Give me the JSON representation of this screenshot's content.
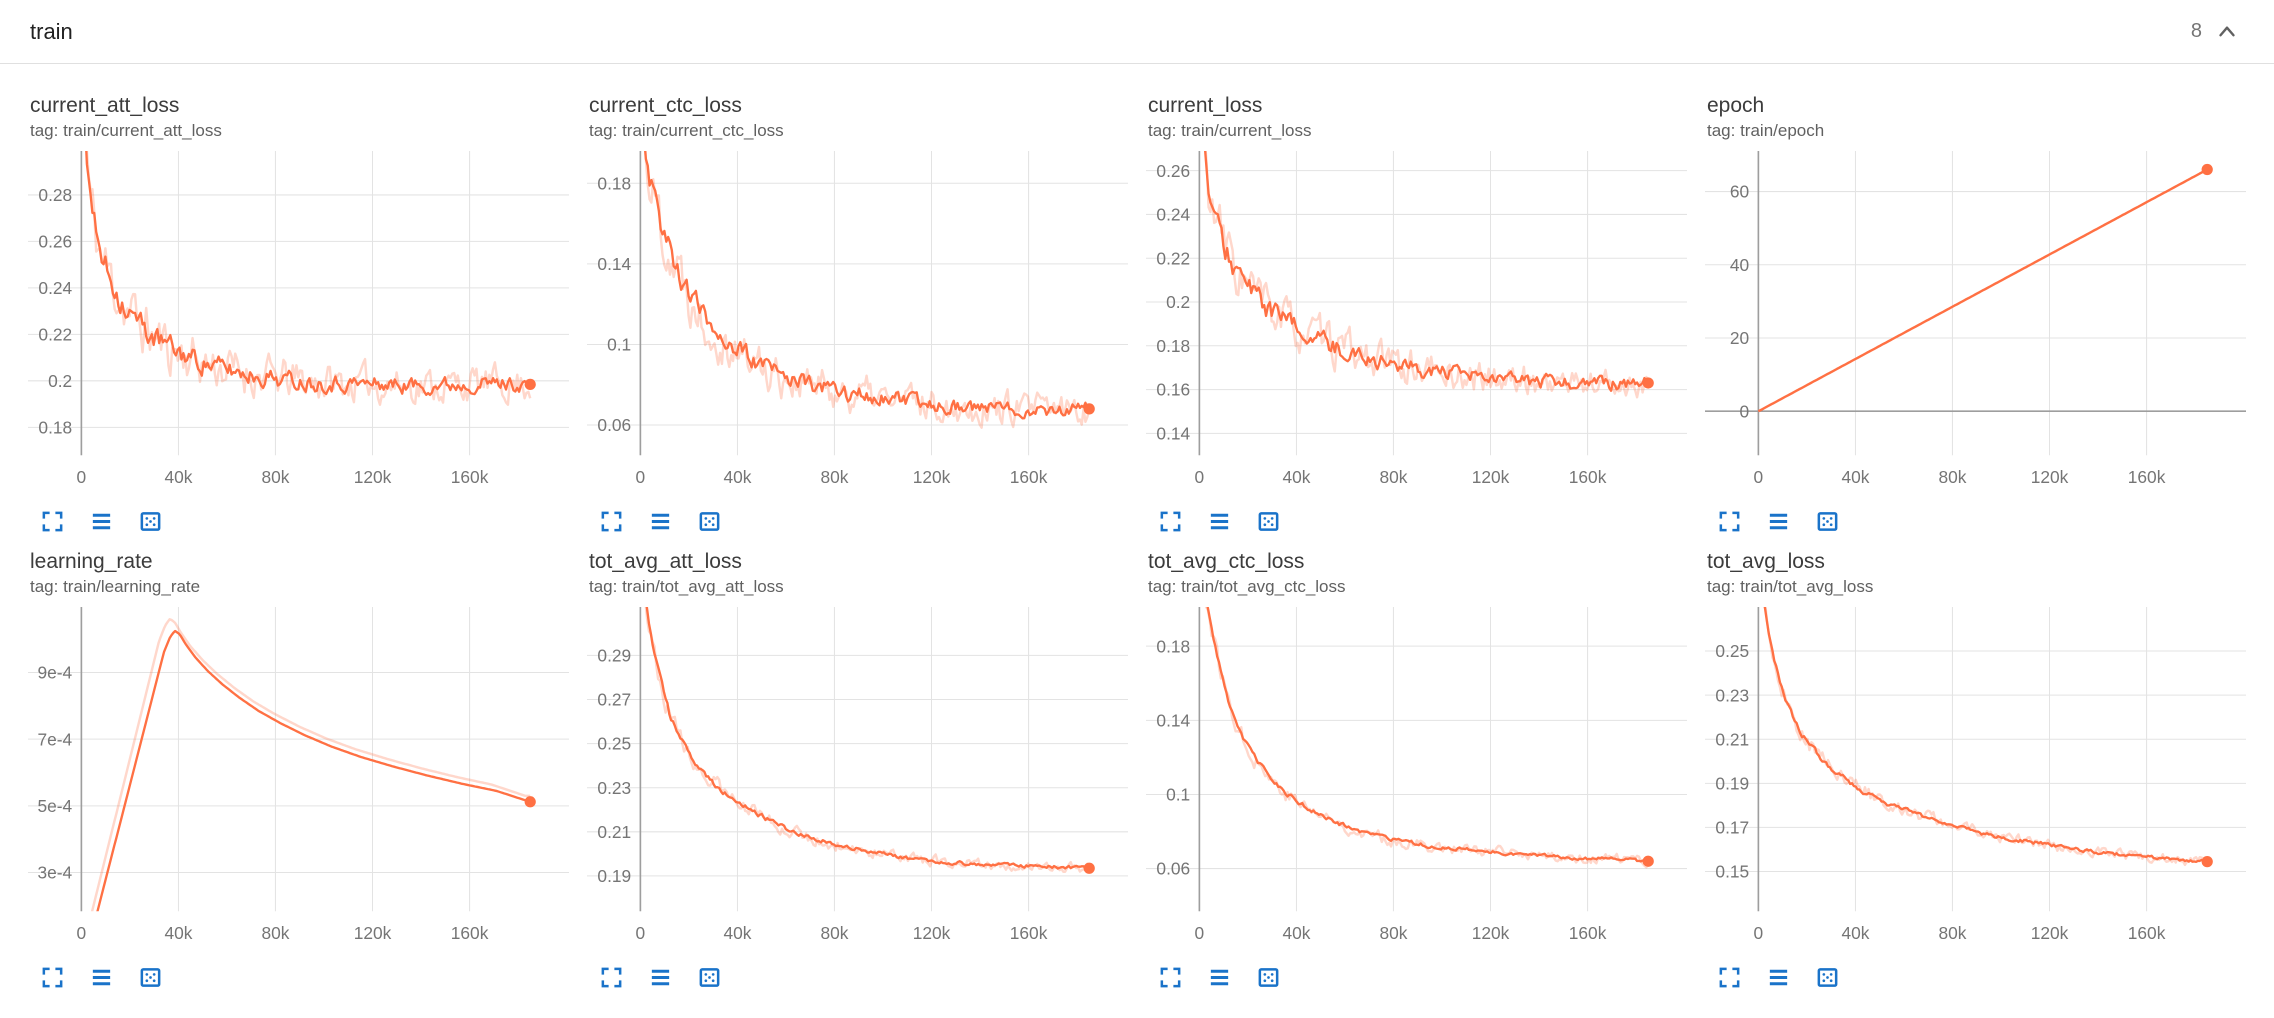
{
  "header": {
    "title": "train",
    "count": "8"
  },
  "icons": {
    "collapse": "chevron-up-icon",
    "expand": "fullscreen-icon",
    "data": "data-table-icon",
    "fit": "fit-domain-icon"
  },
  "theme": {
    "accent": "#ff7043",
    "accent_light_opacity": 0.28,
    "icon_blue": "#1a73c9",
    "grid": "#e3e3e3",
    "axis": "#9e9e9e",
    "tick_text": "#757575",
    "title_text": "#3c3c3c",
    "tag_text": "#616161"
  },
  "chart_data": [
    {
      "type": "line",
      "title": "current_att_loss",
      "tag": "tag: train/current_att_loss",
      "legend_position": "none",
      "grid": true,
      "xlim": [
        -22000,
        201000
      ],
      "xticks": [
        {
          "v": 0,
          "label": "0"
        },
        {
          "v": 40000,
          "label": "40k"
        },
        {
          "v": 80000,
          "label": "80k"
        },
        {
          "v": 120000,
          "label": "120k"
        },
        {
          "v": 160000,
          "label": "160k"
        }
      ],
      "ylim": [
        0.168,
        0.298
      ],
      "yticks": [
        {
          "v": 0.18,
          "label": "0.18"
        },
        {
          "v": 0.2,
          "label": "0.2"
        },
        {
          "v": 0.22,
          "label": "0.22"
        },
        {
          "v": 0.24,
          "label": "0.24"
        },
        {
          "v": 0.26,
          "label": "0.26"
        },
        {
          "v": 0.28,
          "label": "0.28"
        }
      ],
      "trend": [
        [
          1500,
          0.312
        ],
        [
          3000,
          0.285
        ],
        [
          5000,
          0.268
        ],
        [
          8000,
          0.254
        ],
        [
          12000,
          0.244
        ],
        [
          16000,
          0.236
        ],
        [
          20000,
          0.229
        ],
        [
          25000,
          0.2235
        ],
        [
          30000,
          0.2185
        ],
        [
          36000,
          0.2145
        ],
        [
          42000,
          0.2115
        ],
        [
          50000,
          0.208
        ],
        [
          58000,
          0.2055
        ],
        [
          66000,
          0.2035
        ],
        [
          75000,
          0.202
        ],
        [
          85000,
          0.2005
        ],
        [
          95000,
          0.1995
        ],
        [
          110000,
          0.199
        ],
        [
          125000,
          0.1985
        ],
        [
          140000,
          0.198
        ],
        [
          155000,
          0.1985
        ],
        [
          170000,
          0.199
        ],
        [
          185000,
          0.1985
        ]
      ],
      "noise_main": 0.0058,
      "noise_raw": 0.013,
      "raw_dx": 0,
      "raw_gain": 1,
      "seed": 11,
      "end_dot": true,
      "zero_y_line": false
    },
    {
      "type": "line",
      "title": "current_ctc_loss",
      "tag": "tag: train/current_ctc_loss",
      "legend_position": "none",
      "grid": true,
      "xlim": [
        -22000,
        201000
      ],
      "xticks": [
        {
          "v": 0,
          "label": "0"
        },
        {
          "v": 40000,
          "label": "40k"
        },
        {
          "v": 80000,
          "label": "80k"
        },
        {
          "v": 120000,
          "label": "120k"
        },
        {
          "v": 160000,
          "label": "160k"
        }
      ],
      "ylim": [
        0.045,
        0.195
      ],
      "yticks": [
        {
          "v": 0.06,
          "label": "0.06"
        },
        {
          "v": 0.1,
          "label": "0.1"
        },
        {
          "v": 0.14,
          "label": "0.14"
        },
        {
          "v": 0.18,
          "label": "0.18"
        }
      ],
      "trend": [
        [
          1500,
          0.205
        ],
        [
          3000,
          0.19
        ],
        [
          5000,
          0.178
        ],
        [
          8000,
          0.163
        ],
        [
          12000,
          0.148
        ],
        [
          16000,
          0.136
        ],
        [
          20000,
          0.126
        ],
        [
          25000,
          0.1165
        ],
        [
          30000,
          0.109
        ],
        [
          36000,
          0.1015
        ],
        [
          42000,
          0.0955
        ],
        [
          50000,
          0.0895
        ],
        [
          58000,
          0.085
        ],
        [
          66000,
          0.0815
        ],
        [
          75000,
          0.0785
        ],
        [
          85000,
          0.076
        ],
        [
          95000,
          0.074
        ],
        [
          110000,
          0.0715
        ],
        [
          125000,
          0.07
        ],
        [
          140000,
          0.0685
        ],
        [
          155000,
          0.068
        ],
        [
          170000,
          0.0675
        ],
        [
          185000,
          0.068
        ]
      ],
      "noise_main": 0.0062,
      "noise_raw": 0.014,
      "raw_dx": 0,
      "raw_gain": 1,
      "seed": 22,
      "end_dot": true,
      "zero_y_line": false
    },
    {
      "type": "line",
      "title": "current_loss",
      "tag": "tag: train/current_loss",
      "legend_position": "none",
      "grid": true,
      "xlim": [
        -22000,
        201000
      ],
      "xticks": [
        {
          "v": 0,
          "label": "0"
        },
        {
          "v": 40000,
          "label": "40k"
        },
        {
          "v": 80000,
          "label": "80k"
        },
        {
          "v": 120000,
          "label": "120k"
        },
        {
          "v": 160000,
          "label": "160k"
        }
      ],
      "ylim": [
        0.13,
        0.268
      ],
      "yticks": [
        {
          "v": 0.14,
          "label": "0.14"
        },
        {
          "v": 0.16,
          "label": "0.16"
        },
        {
          "v": 0.18,
          "label": "0.18"
        },
        {
          "v": 0.2,
          "label": "0.2"
        },
        {
          "v": 0.22,
          "label": "0.22"
        },
        {
          "v": 0.24,
          "label": "0.24"
        },
        {
          "v": 0.26,
          "label": "0.26"
        }
      ],
      "trend": [
        [
          1500,
          0.278
        ],
        [
          3000,
          0.257
        ],
        [
          5000,
          0.2435
        ],
        [
          8000,
          0.2315
        ],
        [
          12000,
          0.2215
        ],
        [
          16000,
          0.2135
        ],
        [
          20000,
          0.207
        ],
        [
          25000,
          0.2005
        ],
        [
          30000,
          0.1955
        ],
        [
          36000,
          0.1905
        ],
        [
          42000,
          0.1865
        ],
        [
          50000,
          0.182
        ],
        [
          58000,
          0.1785
        ],
        [
          66000,
          0.1755
        ],
        [
          75000,
          0.173
        ],
        [
          85000,
          0.1705
        ],
        [
          95000,
          0.1685
        ],
        [
          110000,
          0.166
        ],
        [
          125000,
          0.1645
        ],
        [
          140000,
          0.1635
        ],
        [
          155000,
          0.163
        ],
        [
          170000,
          0.1625
        ],
        [
          185000,
          0.163
        ]
      ],
      "noise_main": 0.0055,
      "noise_raw": 0.012,
      "raw_dx": 0,
      "raw_gain": 1,
      "seed": 33,
      "end_dot": true,
      "zero_y_line": false
    },
    {
      "type": "line",
      "title": "epoch",
      "tag": "tag: train/epoch",
      "legend_position": "none",
      "grid": true,
      "xlim": [
        -22000,
        201000
      ],
      "xticks": [
        {
          "v": 0,
          "label": "0"
        },
        {
          "v": 40000,
          "label": "40k"
        },
        {
          "v": 80000,
          "label": "80k"
        },
        {
          "v": 120000,
          "label": "120k"
        },
        {
          "v": 160000,
          "label": "160k"
        }
      ],
      "ylim": [
        -12,
        70.5
      ],
      "yticks": [
        {
          "v": 0,
          "label": "0"
        },
        {
          "v": 20,
          "label": "20"
        },
        {
          "v": 40,
          "label": "40"
        },
        {
          "v": 60,
          "label": "60"
        }
      ],
      "trend": [
        [
          0,
          0
        ],
        [
          185000,
          66
        ]
      ],
      "noise_main": 0,
      "noise_raw": 0,
      "raw_dx": 0,
      "raw_gain": 1,
      "seed": 4,
      "end_dot": true,
      "zero_y_line": true
    },
    {
      "type": "line",
      "title": "learning_rate",
      "tag": "tag: train/learning_rate",
      "legend_position": "none",
      "grid": true,
      "xlim": [
        -22000,
        201000
      ],
      "xticks": [
        {
          "v": 0,
          "label": "0"
        },
        {
          "v": 40000,
          "label": "40k"
        },
        {
          "v": 80000,
          "label": "80k"
        },
        {
          "v": 120000,
          "label": "120k"
        },
        {
          "v": 160000,
          "label": "160k"
        }
      ],
      "ylim": [
        0.000184,
        0.00109
      ],
      "yticks": [
        {
          "v": 0.0003,
          "label": "3e-4"
        },
        {
          "v": 0.0005,
          "label": "5e-4"
        },
        {
          "v": 0.0007,
          "label": "7e-4"
        },
        {
          "v": 0.0009,
          "label": "9e-4"
        }
      ],
      "trend": [
        [
          3000,
          8e-05
        ],
        [
          34000,
          0.00096
        ],
        [
          36500,
          0.001005
        ],
        [
          38500,
          0.001025
        ],
        [
          40500,
          0.001015
        ],
        [
          43000,
          0.000985
        ],
        [
          47000,
          0.000945
        ],
        [
          52000,
          0.000905
        ],
        [
          58000,
          0.000865
        ],
        [
          65000,
          0.000825
        ],
        [
          73000,
          0.000785
        ],
        [
          82000,
          0.000748
        ],
        [
          92000,
          0.000712
        ],
        [
          103000,
          0.000678
        ],
        [
          115000,
          0.000647
        ],
        [
          128000,
          0.000619
        ],
        [
          142000,
          0.000592
        ],
        [
          157000,
          0.000566
        ],
        [
          171000,
          0.000545
        ],
        [
          185000,
          0.000512
        ]
      ],
      "noise_main": 0,
      "noise_raw": 0,
      "raw_dx": 2000,
      "raw_gain": 1.035,
      "seed": 5,
      "end_dot": true,
      "zero_y_line": false
    },
    {
      "type": "line",
      "title": "tot_avg_att_loss",
      "tag": "tag: train/tot_avg_att_loss",
      "legend_position": "none",
      "grid": true,
      "xlim": [
        -22000,
        201000
      ],
      "xticks": [
        {
          "v": 0,
          "label": "0"
        },
        {
          "v": 40000,
          "label": "40k"
        },
        {
          "v": 80000,
          "label": "80k"
        },
        {
          "v": 120000,
          "label": "120k"
        },
        {
          "v": 160000,
          "label": "160k"
        }
      ],
      "ylim": [
        0.174,
        0.311
      ],
      "yticks": [
        {
          "v": 0.19,
          "label": "0.19"
        },
        {
          "v": 0.21,
          "label": "0.21"
        },
        {
          "v": 0.23,
          "label": "0.23"
        },
        {
          "v": 0.25,
          "label": "0.25"
        },
        {
          "v": 0.27,
          "label": "0.27"
        },
        {
          "v": 0.29,
          "label": "0.29"
        }
      ],
      "trend": [
        [
          2000,
          0.318
        ],
        [
          4000,
          0.302
        ],
        [
          6000,
          0.29
        ],
        [
          8000,
          0.281
        ],
        [
          10000,
          0.2715
        ],
        [
          12000,
          0.2635
        ],
        [
          15000,
          0.2555
        ],
        [
          18000,
          0.249
        ],
        [
          22000,
          0.2425
        ],
        [
          26000,
          0.2375
        ],
        [
          30000,
          0.2325
        ],
        [
          35000,
          0.2275
        ],
        [
          40000,
          0.2235
        ],
        [
          46000,
          0.2195
        ],
        [
          52000,
          0.216
        ],
        [
          60000,
          0.2115
        ],
        [
          70000,
          0.2075
        ],
        [
          80000,
          0.2045
        ],
        [
          90000,
          0.202
        ],
        [
          100000,
          0.2
        ],
        [
          115000,
          0.1975
        ],
        [
          130000,
          0.196
        ],
        [
          145000,
          0.195
        ],
        [
          160000,
          0.1945
        ],
        [
          172000,
          0.194
        ],
        [
          185000,
          0.1935
        ]
      ],
      "noise_main": 0.0014,
      "noise_raw": 0.004,
      "raw_dx": 0,
      "raw_gain": 1,
      "seed": 66,
      "end_dot": true,
      "zero_y_line": false
    },
    {
      "type": "line",
      "title": "tot_avg_ctc_loss",
      "tag": "tag: train/tot_avg_ctc_loss",
      "legend_position": "none",
      "grid": true,
      "xlim": [
        -22000,
        201000
      ],
      "xticks": [
        {
          "v": 0,
          "label": "0"
        },
        {
          "v": 40000,
          "label": "40k"
        },
        {
          "v": 80000,
          "label": "80k"
        },
        {
          "v": 120000,
          "label": "120k"
        },
        {
          "v": 160000,
          "label": "160k"
        }
      ],
      "ylim": [
        0.037,
        0.2
      ],
      "yticks": [
        {
          "v": 0.06,
          "label": "0.06"
        },
        {
          "v": 0.1,
          "label": "0.1"
        },
        {
          "v": 0.14,
          "label": "0.14"
        },
        {
          "v": 0.18,
          "label": "0.18"
        }
      ],
      "trend": [
        [
          2000,
          0.212
        ],
        [
          4000,
          0.196
        ],
        [
          6000,
          0.183
        ],
        [
          8000,
          0.171
        ],
        [
          10000,
          0.16
        ],
        [
          12000,
          0.151
        ],
        [
          15000,
          0.14
        ],
        [
          18000,
          0.131
        ],
        [
          22000,
          0.1215
        ],
        [
          26000,
          0.114
        ],
        [
          30000,
          0.108
        ],
        [
          35000,
          0.1015
        ],
        [
          40000,
          0.0965
        ],
        [
          46000,
          0.0915
        ],
        [
          52000,
          0.0875
        ],
        [
          60000,
          0.083
        ],
        [
          70000,
          0.0785
        ],
        [
          80000,
          0.0755
        ],
        [
          90000,
          0.073
        ],
        [
          100000,
          0.0715
        ],
        [
          115000,
          0.0695
        ],
        [
          130000,
          0.068
        ],
        [
          145000,
          0.0665
        ],
        [
          160000,
          0.0655
        ],
        [
          172000,
          0.065
        ],
        [
          185000,
          0.064
        ]
      ],
      "noise_main": 0.0016,
      "noise_raw": 0.0048,
      "raw_dx": 0,
      "raw_gain": 1,
      "seed": 77,
      "end_dot": true,
      "zero_y_line": false
    },
    {
      "type": "line",
      "title": "tot_avg_loss",
      "tag": "tag: train/tot_avg_loss",
      "legend_position": "none",
      "grid": true,
      "xlim": [
        -22000,
        201000
      ],
      "xticks": [
        {
          "v": 0,
          "label": "0"
        },
        {
          "v": 40000,
          "label": "40k"
        },
        {
          "v": 80000,
          "label": "80k"
        },
        {
          "v": 120000,
          "label": "120k"
        },
        {
          "v": 160000,
          "label": "160k"
        }
      ],
      "ylim": [
        0.132,
        0.269
      ],
      "yticks": [
        {
          "v": 0.15,
          "label": "0.15"
        },
        {
          "v": 0.17,
          "label": "0.17"
        },
        {
          "v": 0.19,
          "label": "0.19"
        },
        {
          "v": 0.21,
          "label": "0.21"
        },
        {
          "v": 0.23,
          "label": "0.23"
        },
        {
          "v": 0.25,
          "label": "0.25"
        }
      ],
      "trend": [
        [
          2000,
          0.274
        ],
        [
          4000,
          0.26
        ],
        [
          6000,
          0.249
        ],
        [
          8000,
          0.24
        ],
        [
          10000,
          0.2325
        ],
        [
          12000,
          0.226
        ],
        [
          15000,
          0.2185
        ],
        [
          18000,
          0.2125
        ],
        [
          22000,
          0.2065
        ],
        [
          26000,
          0.2015
        ],
        [
          30000,
          0.197
        ],
        [
          35000,
          0.1925
        ],
        [
          40000,
          0.1885
        ],
        [
          46000,
          0.185
        ],
        [
          52000,
          0.1815
        ],
        [
          60000,
          0.178
        ],
        [
          70000,
          0.1745
        ],
        [
          80000,
          0.1715
        ],
        [
          90000,
          0.168
        ],
        [
          100000,
          0.1655
        ],
        [
          115000,
          0.163
        ],
        [
          130000,
          0.16
        ],
        [
          145000,
          0.158
        ],
        [
          160000,
          0.1565
        ],
        [
          172000,
          0.1555
        ],
        [
          185000,
          0.1545
        ]
      ],
      "noise_main": 0.0014,
      "noise_raw": 0.004,
      "raw_dx": 0,
      "raw_gain": 1,
      "seed": 88,
      "end_dot": true,
      "zero_y_line": false
    }
  ]
}
